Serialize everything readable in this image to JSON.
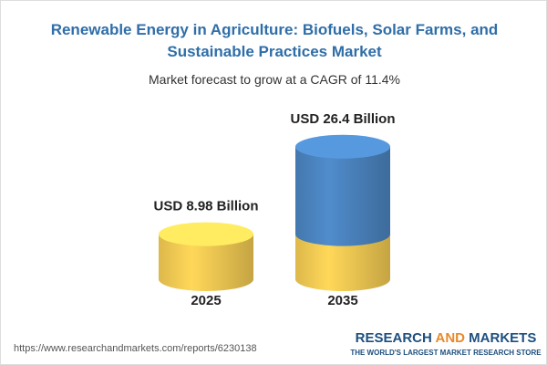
{
  "chart_data": {
    "type": "cylinder",
    "title": "Renewable Energy in Agriculture: Biofuels, Solar Farms, and Sustainable Practices Market",
    "subtitle": "Market forecast to grow at a CAGR of 11.4%",
    "categories": [
      "2025",
      "2035"
    ],
    "values": [
      8.98,
      26.4
    ],
    "value_labels": [
      "USD 8.98 Billion",
      "USD 26.4 Billion"
    ],
    "colors": [
      "#f0c852",
      "#4a82bd"
    ]
  },
  "footer": {
    "url": "https://www.researchandmarkets.com/reports/6230138",
    "logo": [
      "RESEARCH",
      "AND",
      "MARKETS"
    ],
    "tagline": "THE WORLD'S LARGEST MARKET RESEARCH STORE"
  }
}
